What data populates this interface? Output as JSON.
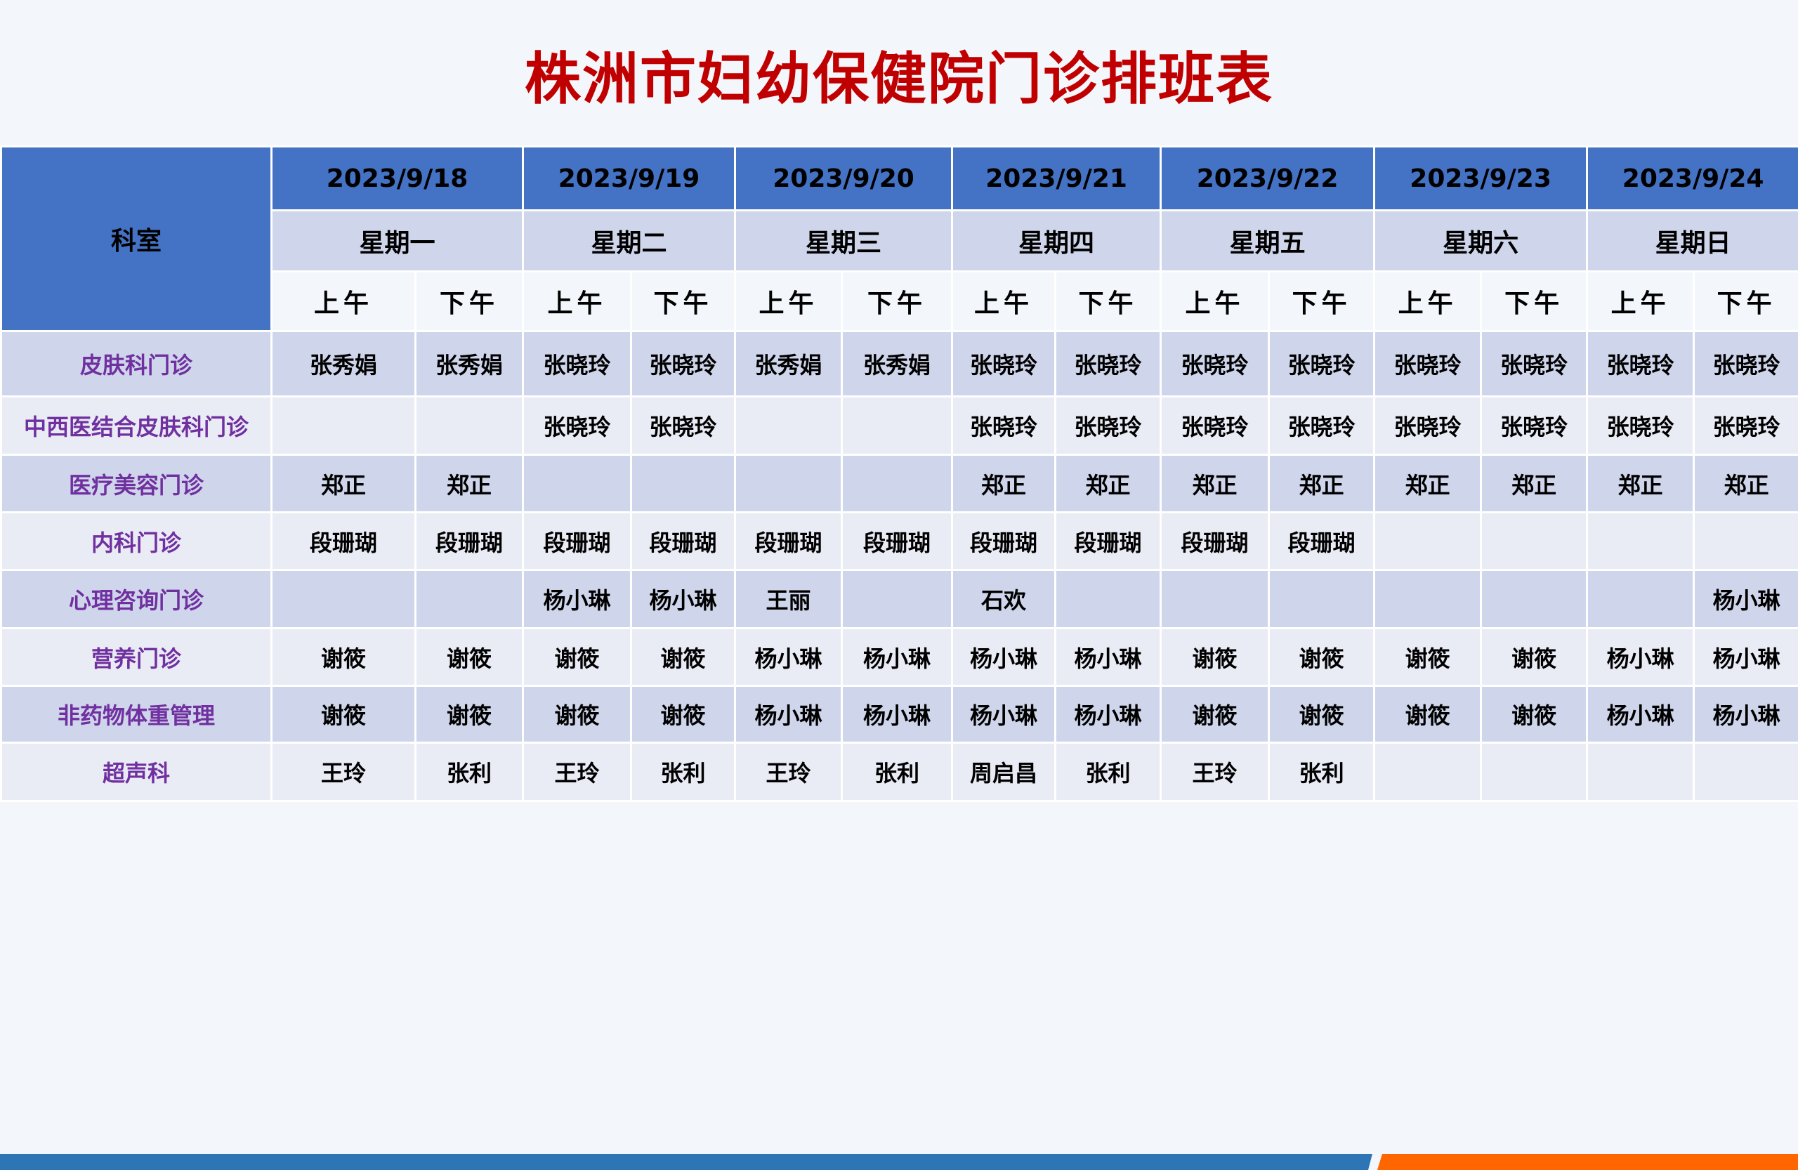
{
  "title": "株洲市妇幼保健院门诊排班表",
  "header": {
    "dept_label": "科室",
    "dates": [
      "2023/9/18",
      "2023/9/19",
      "2023/9/20",
      "2023/9/21",
      "2023/9/22",
      "2023/9/23",
      "2023/9/24"
    ],
    "weekdays": [
      "星期一",
      "星期二",
      "星期三",
      "星期四",
      "星期五",
      "星期六",
      "星期日"
    ],
    "am_label": "上午",
    "pm_label": "下午"
  },
  "rows": [
    {
      "dept": "皮肤科门诊",
      "cells": [
        "张秀娟",
        "张秀娟",
        "张晓玲",
        "张晓玲",
        "张秀娟",
        "张秀娟",
        "张晓玲",
        "张晓玲",
        "张晓玲",
        "张晓玲",
        "张晓玲",
        "张晓玲",
        "张晓玲",
        "张晓玲"
      ]
    },
    {
      "dept": "中西医结合皮肤科门诊",
      "cells": [
        "",
        "",
        "张晓玲",
        "张晓玲",
        "",
        "",
        "张晓玲",
        "张晓玲",
        "张晓玲",
        "张晓玲",
        "张晓玲",
        "张晓玲",
        "张晓玲",
        "张晓玲"
      ]
    },
    {
      "dept": "医疗美容门诊",
      "cells": [
        "郑正",
        "郑正",
        "",
        "",
        "",
        "",
        "郑正",
        "郑正",
        "郑正",
        "郑正",
        "郑正",
        "郑正",
        "郑正",
        "郑正"
      ]
    },
    {
      "dept": "内科门诊",
      "cells": [
        "段珊瑚",
        "段珊瑚",
        "段珊瑚",
        "段珊瑚",
        "段珊瑚",
        "段珊瑚",
        "段珊瑚",
        "段珊瑚",
        "段珊瑚",
        "段珊瑚",
        "",
        "",
        "",
        ""
      ]
    },
    {
      "dept": "心理咨询门诊",
      "cells": [
        "",
        "",
        "杨小琳",
        "杨小琳",
        "王丽",
        "",
        "石欢",
        "",
        "",
        "",
        "",
        "",
        "",
        "杨小琳"
      ]
    },
    {
      "dept": "营养门诊",
      "cells": [
        "谢筱",
        "谢筱",
        "谢筱",
        "谢筱",
        "杨小琳",
        "杨小琳",
        "杨小琳",
        "杨小琳",
        "谢筱",
        "谢筱",
        "谢筱",
        "谢筱",
        "杨小琳",
        "杨小琳"
      ]
    },
    {
      "dept": "非药物体重管理",
      "cells": [
        "谢筱",
        "谢筱",
        "谢筱",
        "谢筱",
        "杨小琳",
        "杨小琳",
        "杨小琳",
        "杨小琳",
        "谢筱",
        "谢筱",
        "谢筱",
        "谢筱",
        "杨小琳",
        "杨小琳"
      ]
    },
    {
      "dept": "超声科",
      "cells": [
        "王玲",
        "张利",
        "王玲",
        "张利",
        "王玲",
        "张利",
        "周启昌",
        "张利",
        "王玲",
        "张利",
        "",
        "",
        "",
        ""
      ]
    }
  ],
  "colors": {
    "title": "#C00000",
    "header_blue": "#4472C4",
    "row_dark": "#CFD5EA",
    "row_light": "#E9EBF5",
    "dept_text": "#7030A0",
    "footer_blue": "#2E75B6",
    "footer_orange": "#FF6600"
  }
}
